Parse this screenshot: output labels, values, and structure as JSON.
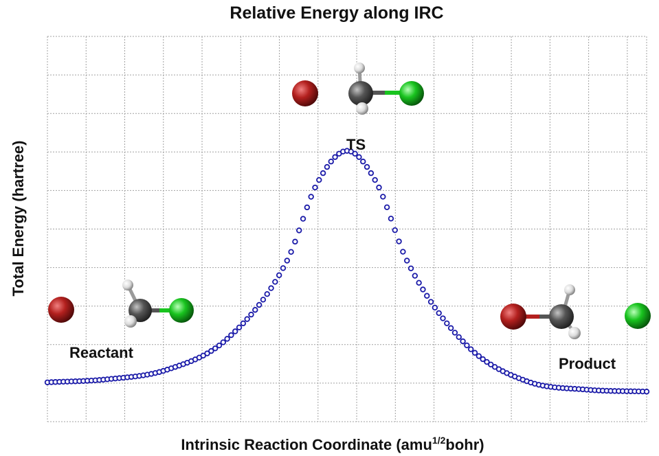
{
  "chart_data": {
    "type": "scatter",
    "title": "Relative Energy along IRC",
    "xlabel_main": "Intrinsic Reaction Coordinate (amu",
    "xlabel_sup": "1/2",
    "xlabel_tail": "bohr)",
    "ylabel": "Total Energy (hartree)",
    "grid": true,
    "tick_labels_shown": false,
    "point_count": 151,
    "x_range": [
      0,
      1
    ],
    "y_range": [
      0,
      1
    ],
    "curve_note": "Relative energy rises from the reactant plateau to a single maximum at the TS and falls to a slightly lower product plateau; values are relative since the axes carry no tick labels.",
    "series": [
      {
        "marker": "open-circle",
        "color": "#1a1aa8",
        "x": [
          0.0,
          0.1,
          0.2,
          0.3,
          0.4,
          0.45,
          0.5,
          0.55,
          0.6,
          0.7,
          0.8,
          0.9,
          1.0
        ],
        "y": [
          0.102,
          0.11,
          0.135,
          0.215,
          0.418,
          0.618,
          0.703,
          0.618,
          0.418,
          0.198,
          0.105,
          0.083,
          0.078
        ]
      }
    ],
    "annotations": {
      "reactant": "Reactant",
      "ts": "TS",
      "product": "Product"
    },
    "colors": {
      "grid": "#a0a0a0",
      "bromine": "#b3201e",
      "carbon": "#555555",
      "hydrogen": "#e8e8e8",
      "chlorine": "#19c41f"
    }
  }
}
